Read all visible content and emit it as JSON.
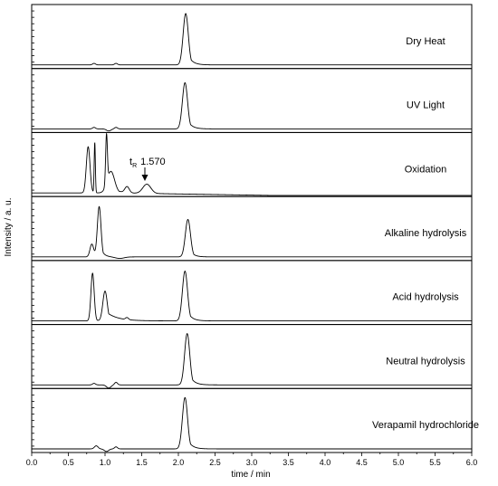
{
  "chart_data": {
    "type": "line",
    "title": "",
    "xlabel": "time / min",
    "ylabel": "Intensity / a. u.",
    "xlim": [
      0.0,
      6.0
    ],
    "x_tick_labels": [
      "0.0",
      "0.5",
      "1.0",
      "1.5",
      "2.0",
      "2.5",
      "3.0",
      "3.5",
      "4.0",
      "4.5",
      "5.0",
      "5.5",
      "6.0"
    ],
    "grid": false,
    "annotation": {
      "prefix": "t",
      "subscript": "R",
      "value": "1.570",
      "x": 1.57
    },
    "panels": [
      {
        "label": "Dry Heat",
        "baseline_drift": 0,
        "peaks": [
          {
            "t": 0.85,
            "h": 0.03,
            "w": 0.02,
            "tail": 0
          },
          {
            "t": 1.15,
            "h": 0.03,
            "w": 0.02,
            "tail": 0
          },
          {
            "t": 2.1,
            "h": 1.0,
            "w": 0.035,
            "tail": 0.06
          }
        ]
      },
      {
        "label": "UV Light",
        "baseline_drift": 0,
        "peaks": [
          {
            "t": 0.85,
            "h": 0.03,
            "w": 0.02,
            "tail": 0
          },
          {
            "t": 1.05,
            "h": -0.04,
            "w": 0.03,
            "tail": 0
          },
          {
            "t": 1.15,
            "h": 0.03,
            "w": 0.02,
            "tail": 0
          },
          {
            "t": 2.09,
            "h": 0.9,
            "w": 0.035,
            "tail": 0.06
          }
        ]
      },
      {
        "label": "Oxidation",
        "baseline_drift": -0.05,
        "peaks": [
          {
            "t": 0.77,
            "h": 0.9,
            "w": 0.025,
            "tail": 0.02
          },
          {
            "t": 0.86,
            "h": 0.98,
            "w": 0.008,
            "tail": 0
          },
          {
            "t": 1.02,
            "h": 0.95,
            "w": 0.012,
            "tail": 0
          },
          {
            "t": 1.08,
            "h": 0.42,
            "w": 0.05,
            "tail": 0.08
          },
          {
            "t": 1.3,
            "h": 0.12,
            "w": 0.03,
            "tail": 0.02
          },
          {
            "t": 1.57,
            "h": 0.18,
            "w": 0.055,
            "tail": 0.05
          }
        ]
      },
      {
        "label": "Alkaline hydrolysis",
        "baseline_drift": 0,
        "peaks": [
          {
            "t": 0.82,
            "h": 0.25,
            "w": 0.025,
            "tail": 0
          },
          {
            "t": 0.92,
            "h": 0.98,
            "w": 0.025,
            "tail": 0.04
          },
          {
            "t": 1.2,
            "h": -0.03,
            "w": 0.06,
            "tail": 0
          },
          {
            "t": 2.13,
            "h": 0.73,
            "w": 0.035,
            "tail": 0.05
          }
        ]
      },
      {
        "label": "Acid hydrolysis",
        "baseline_drift": 0,
        "peaks": [
          {
            "t": 0.83,
            "h": 0.93,
            "w": 0.022,
            "tail": 0.02
          },
          {
            "t": 1.0,
            "h": 0.58,
            "w": 0.03,
            "tail": 0.15
          },
          {
            "t": 1.3,
            "h": 0.04,
            "w": 0.02,
            "tail": 0
          },
          {
            "t": 2.09,
            "h": 0.97,
            "w": 0.035,
            "tail": 0.06
          }
        ]
      },
      {
        "label": "Neutral hydrolysis",
        "baseline_drift": 0,
        "peaks": [
          {
            "t": 0.85,
            "h": 0.03,
            "w": 0.02,
            "tail": 0
          },
          {
            "t": 1.05,
            "h": -0.06,
            "w": 0.03,
            "tail": 0
          },
          {
            "t": 1.15,
            "h": 0.05,
            "w": 0.02,
            "tail": 0
          },
          {
            "t": 2.12,
            "h": 1.0,
            "w": 0.035,
            "tail": 0.06
          }
        ]
      },
      {
        "label": "Verapamil hydrochloride",
        "baseline_drift": 0,
        "peaks": [
          {
            "t": 0.88,
            "h": 0.06,
            "w": 0.025,
            "tail": 0
          },
          {
            "t": 1.02,
            "h": -0.05,
            "w": 0.03,
            "tail": 0
          },
          {
            "t": 1.15,
            "h": 0.04,
            "w": 0.02,
            "tail": 0
          },
          {
            "t": 2.09,
            "h": 1.0,
            "w": 0.035,
            "tail": 0.06
          }
        ]
      }
    ]
  }
}
